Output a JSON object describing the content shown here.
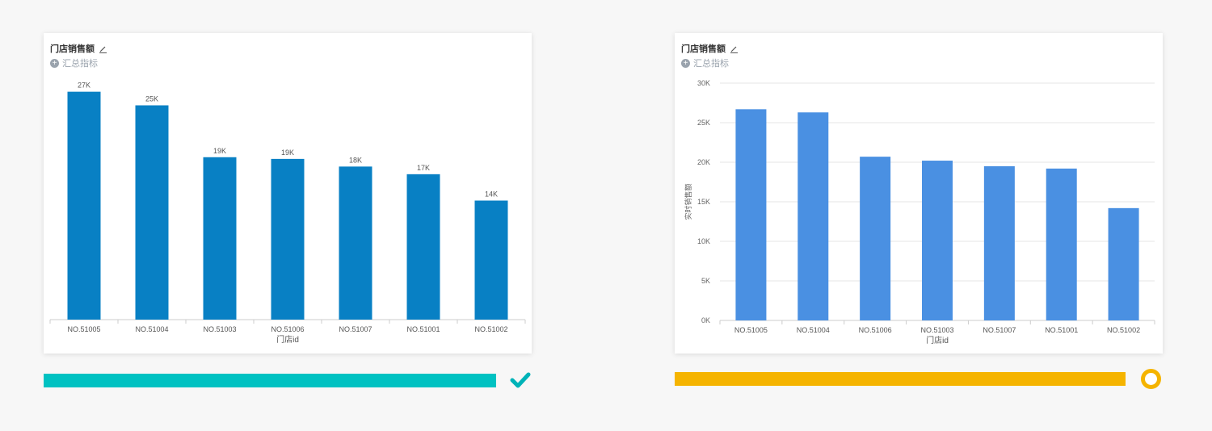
{
  "colors": {
    "left_bar": "#0880c4",
    "right_bar": "#4a90e2",
    "track_left": "#00c2c2",
    "track_right": "#f5b400"
  },
  "icons": {
    "edit": "pencil-icon",
    "add": "plus-circle-icon",
    "ok": "check-icon",
    "pending": "ring-icon"
  },
  "cards": [
    {
      "title": "门店销售额",
      "subtitle": "汇总指标"
    },
    {
      "title": "门店销售额",
      "subtitle": "汇总指标"
    }
  ],
  "chart_data": [
    {
      "type": "bar",
      "title": "门店销售额",
      "xlabel": "门店id",
      "ylabel": "",
      "categories": [
        "NO.51005",
        "NO.51004",
        "NO.51003",
        "NO.51006",
        "NO.51007",
        "NO.51001",
        "NO.51002"
      ],
      "values": [
        26800,
        25200,
        19100,
        18900,
        18000,
        17100,
        14000
      ],
      "data_labels": [
        "27K",
        "25K",
        "19K",
        "19K",
        "18K",
        "17K",
        "14K"
      ],
      "ylim": [
        0,
        28000
      ],
      "grid": false,
      "yaxis_visible": false
    },
    {
      "type": "bar",
      "title": "门店销售额",
      "xlabel": "门店id",
      "ylabel": "实时销售额",
      "categories": [
        "NO.51005",
        "NO.51004",
        "NO.51006",
        "NO.51003",
        "NO.51007",
        "NO.51001",
        "NO.51002"
      ],
      "values": [
        26700,
        26300,
        20700,
        20200,
        19500,
        19200,
        14200
      ],
      "ylim": [
        0,
        30000
      ],
      "yticks": [
        "0K",
        "5K",
        "10K",
        "15K",
        "20K",
        "25K",
        "30K"
      ],
      "grid": true,
      "yaxis_visible": true
    }
  ]
}
